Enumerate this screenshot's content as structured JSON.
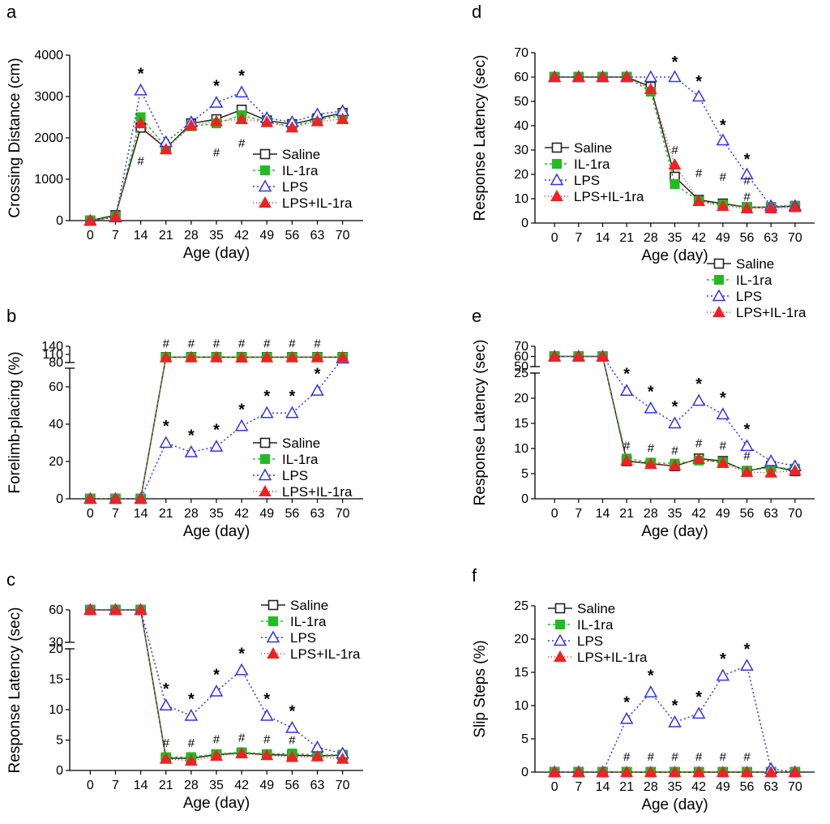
{
  "legend": [
    {
      "name": "Saline",
      "color": "#222222",
      "marker": "open-square",
      "dash": ""
    },
    {
      "name": "IL-1ra",
      "color": "#22bb22",
      "marker": "filled-square",
      "dash": "3,3"
    },
    {
      "name": "LPS",
      "color": "#3333ee",
      "marker": "open-triangle",
      "dash": "2,3"
    },
    {
      "name": "LPS+IL-1ra",
      "color": "#ee2222",
      "marker": "filled-triangle",
      "dash": "1,3"
    }
  ],
  "chart_data": [
    {
      "panel": "a",
      "type": "line",
      "xlabel": "Age (day)",
      "ylabel": "Crossing Distance (cm)",
      "x": [
        0,
        7,
        14,
        21,
        28,
        35,
        42,
        49,
        56,
        63,
        70
      ],
      "ylim": [
        0,
        4000
      ],
      "yticks": [
        0,
        1000,
        2000,
        3000,
        4000
      ],
      "series": [
        {
          "name": "Saline",
          "values": [
            0,
            130,
            2250,
            1750,
            2350,
            2450,
            2680,
            2420,
            2330,
            2470,
            2600
          ]
        },
        {
          "name": "IL-1ra",
          "values": [
            0,
            100,
            2500,
            1780,
            2280,
            2350,
            2550,
            2380,
            2280,
            2430,
            2550
          ]
        },
        {
          "name": "LPS",
          "values": [
            0,
            80,
            3150,
            1900,
            2380,
            2850,
            3100,
            2480,
            2380,
            2570,
            2650
          ]
        },
        {
          "name": "LPS+IL-1ra",
          "values": [
            0,
            100,
            2350,
            1720,
            2300,
            2400,
            2450,
            2380,
            2250,
            2400,
            2450
          ]
        }
      ],
      "stars": [
        {
          "x": 14,
          "text": "*"
        },
        {
          "x": 35,
          "text": "*"
        },
        {
          "x": 42,
          "text": "*"
        }
      ],
      "hashes": [
        {
          "x": 14,
          "text": "#"
        },
        {
          "x": 35,
          "text": "#"
        },
        {
          "x": 42,
          "text": "#"
        }
      ]
    },
    {
      "panel": "b",
      "type": "line",
      "xlabel": "Age (day)",
      "ylabel": "Forelimb-placing (%)",
      "x": [
        0,
        7,
        14,
        21,
        28,
        35,
        42,
        49,
        56,
        63,
        70
      ],
      "ylim": [
        0,
        140
      ],
      "yticks_lower": [
        0,
        20,
        40,
        60
      ],
      "yticks_upper": [
        80,
        110,
        140
      ],
      "series": [
        {
          "name": "Saline",
          "values": [
            0,
            0,
            0,
            100,
            100,
            100,
            100,
            100,
            100,
            100,
            100
          ]
        },
        {
          "name": "IL-1ra",
          "values": [
            0,
            0,
            0,
            100,
            100,
            100,
            100,
            100,
            100,
            100,
            100
          ]
        },
        {
          "name": "LPS",
          "values": [
            0,
            0,
            0,
            30,
            25,
            28,
            39,
            46,
            46,
            58,
            95
          ]
        },
        {
          "name": "LPS+IL-1ra",
          "values": [
            0,
            0,
            0,
            99,
            99,
            99,
            98,
            99,
            99,
            99,
            99
          ]
        }
      ],
      "stars": [
        {
          "x": 21,
          "text": "*"
        },
        {
          "x": 28,
          "text": "*"
        },
        {
          "x": 35,
          "text": "*"
        },
        {
          "x": 42,
          "text": "*"
        },
        {
          "x": 49,
          "text": "*"
        },
        {
          "x": 56,
          "text": "*"
        },
        {
          "x": 63,
          "text": "*"
        }
      ],
      "hashes": [
        {
          "x": 21,
          "text": "#"
        },
        {
          "x": 28,
          "text": "#"
        },
        {
          "x": 35,
          "text": "#"
        },
        {
          "x": 42,
          "text": "#"
        },
        {
          "x": 49,
          "text": "#"
        },
        {
          "x": 56,
          "text": "#"
        },
        {
          "x": 63,
          "text": "#"
        }
      ]
    },
    {
      "panel": "c",
      "type": "line",
      "xlabel": "Age (day)",
      "ylabel": "Response Latency (sec)",
      "x": [
        0,
        7,
        14,
        21,
        28,
        35,
        42,
        49,
        56,
        63,
        70
      ],
      "ylim": [
        0,
        60
      ],
      "yticks_lower": [
        0,
        5,
        10,
        15,
        20
      ],
      "yticks_upper": [
        30,
        60
      ],
      "series": [
        {
          "name": "Saline",
          "values": [
            60,
            60,
            60,
            2,
            2,
            2.6,
            2.9,
            2.6,
            2.5,
            2.4,
            2.5
          ]
        },
        {
          "name": "IL-1ra",
          "values": [
            60,
            60,
            60,
            2.2,
            2.2,
            2.7,
            3,
            2.7,
            2.8,
            2.5,
            2.6
          ]
        },
        {
          "name": "LPS",
          "values": [
            60,
            60,
            60,
            10.7,
            9,
            13,
            16.5,
            9,
            7,
            3.8,
            2.8
          ]
        },
        {
          "name": "LPS+IL-1ra",
          "values": [
            60,
            60,
            60,
            1.9,
            1.6,
            2.4,
            2.8,
            2.5,
            2.2,
            2.3,
            1.9
          ]
        }
      ],
      "stars": [
        {
          "x": 21,
          "text": "*"
        },
        {
          "x": 28,
          "text": "*"
        },
        {
          "x": 35,
          "text": "*"
        },
        {
          "x": 42,
          "text": "*"
        },
        {
          "x": 49,
          "text": "*"
        },
        {
          "x": 56,
          "text": "*"
        }
      ],
      "hashes": [
        {
          "x": 21,
          "text": "#"
        },
        {
          "x": 28,
          "text": "#"
        },
        {
          "x": 35,
          "text": "#"
        },
        {
          "x": 42,
          "text": "#"
        },
        {
          "x": 49,
          "text": "#"
        },
        {
          "x": 56,
          "text": "#"
        }
      ]
    },
    {
      "panel": "d",
      "type": "line",
      "xlabel": "Age (day)",
      "ylabel": "Response Latency (sec)",
      "x": [
        0,
        7,
        14,
        21,
        28,
        35,
        42,
        49,
        56,
        63,
        70
      ],
      "ylim": [
        0,
        70
      ],
      "yticks": [
        0,
        10,
        20,
        30,
        40,
        50,
        60,
        70
      ],
      "series": [
        {
          "name": "Saline",
          "values": [
            60,
            60,
            60,
            60,
            56,
            19,
            9.5,
            8,
            6.5,
            6.5,
            7
          ]
        },
        {
          "name": "IL-1ra",
          "values": [
            60,
            60,
            60,
            60,
            54,
            16,
            9,
            7.5,
            6.5,
            6.5,
            7
          ]
        },
        {
          "name": "LPS",
          "values": [
            60,
            60,
            60,
            60,
            60,
            60,
            52,
            34,
            20,
            7,
            7
          ]
        },
        {
          "name": "LPS+IL-1ra",
          "values": [
            60,
            60,
            60,
            60,
            55,
            24,
            9,
            7,
            6,
            6,
            6.5
          ]
        }
      ],
      "stars": [
        {
          "x": 35,
          "text": "*"
        },
        {
          "x": 42,
          "text": "*"
        },
        {
          "x": 49,
          "text": "*"
        },
        {
          "x": 56,
          "text": "*"
        }
      ],
      "hashes": [
        {
          "x": 35,
          "text": "#"
        },
        {
          "x": 42,
          "text": "#"
        },
        {
          "x": 49,
          "text": "#"
        },
        {
          "x": 56,
          "text": "#"
        },
        {
          "x": 56,
          "text": "#"
        }
      ]
    },
    {
      "panel": "e",
      "type": "line",
      "xlabel": "Age (day)",
      "ylabel": "Response Latency (sec)",
      "x": [
        0,
        7,
        14,
        21,
        28,
        35,
        42,
        49,
        56,
        63,
        70
      ],
      "ylim": [
        0,
        70
      ],
      "yticks_lower": [
        0,
        5,
        10,
        15,
        20,
        25
      ],
      "yticks_upper": [
        50,
        60,
        70
      ],
      "series": [
        {
          "name": "Saline",
          "values": [
            60,
            60,
            60,
            7.5,
            7,
            6.5,
            8,
            7.5,
            5.5,
            6.5,
            5.5
          ]
        },
        {
          "name": "IL-1ra",
          "values": [
            60,
            60,
            60,
            8,
            7.2,
            7,
            7.6,
            7.3,
            5.6,
            6.2,
            6
          ]
        },
        {
          "name": "LPS",
          "values": [
            60,
            60,
            60,
            21.5,
            18,
            15,
            19.5,
            16.8,
            10.5,
            7.5,
            6.5
          ]
        },
        {
          "name": "LPS+IL-1ra",
          "values": [
            60,
            60,
            60,
            7.6,
            6.9,
            6.6,
            7.9,
            7.1,
            5.3,
            5.2,
            5.6
          ]
        }
      ],
      "stars": [
        {
          "x": 21,
          "text": "*"
        },
        {
          "x": 28,
          "text": "*"
        },
        {
          "x": 35,
          "text": "*"
        },
        {
          "x": 42,
          "text": "*"
        },
        {
          "x": 49,
          "text": "*"
        },
        {
          "x": 56,
          "text": "*"
        }
      ],
      "hashes": [
        {
          "x": 21,
          "text": "#"
        },
        {
          "x": 28,
          "text": "#"
        },
        {
          "x": 35,
          "text": "#"
        },
        {
          "x": 42,
          "text": "#"
        },
        {
          "x": 49,
          "text": "#"
        },
        {
          "x": 56,
          "text": "#"
        }
      ]
    },
    {
      "panel": "f",
      "type": "line",
      "xlabel": "Age (day)",
      "ylabel": "Slip Steps (%)",
      "x": [
        0,
        7,
        14,
        21,
        28,
        35,
        42,
        49,
        56,
        63,
        70
      ],
      "ylim": [
        0,
        25
      ],
      "yticks": [
        0,
        5,
        10,
        15,
        20,
        25
      ],
      "series": [
        {
          "name": "Saline",
          "values": [
            0,
            0,
            0,
            0,
            0,
            0,
            0,
            0,
            0,
            0,
            0
          ]
        },
        {
          "name": "IL-1ra",
          "values": [
            0,
            0,
            0,
            0,
            0,
            0,
            0,
            0,
            0,
            0,
            0
          ]
        },
        {
          "name": "LPS",
          "values": [
            0,
            0,
            0,
            8,
            12,
            7.5,
            8.8,
            14.5,
            16,
            0.5,
            0
          ]
        },
        {
          "name": "LPS+IL-1ra",
          "values": [
            0,
            0,
            0,
            0,
            0,
            0,
            0,
            0,
            0,
            0,
            0
          ]
        }
      ],
      "stars": [
        {
          "x": 21,
          "text": "*"
        },
        {
          "x": 28,
          "text": "*"
        },
        {
          "x": 35,
          "text": "*"
        },
        {
          "x": 42,
          "text": "*"
        },
        {
          "x": 49,
          "text": "*"
        },
        {
          "x": 56,
          "text": "*"
        }
      ],
      "hashes": [
        {
          "x": 21,
          "text": "#"
        },
        {
          "x": 28,
          "text": "#"
        },
        {
          "x": 35,
          "text": "#"
        },
        {
          "x": 42,
          "text": "#"
        },
        {
          "x": 49,
          "text": "#"
        },
        {
          "x": 56,
          "text": "#"
        }
      ]
    }
  ]
}
